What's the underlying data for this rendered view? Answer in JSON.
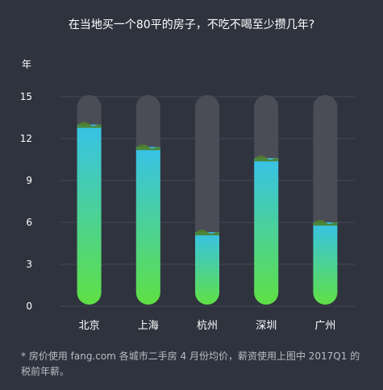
{
  "title": "在当地买一个80平的房子，不吃不喝至少攒几年?",
  "footnote": "* 房价使用 fang.com 各城市二手房 4 月份均价，薪资使用上图中 2017Q1 的税前年薪。",
  "colors": {
    "background": "#2f333e",
    "grid": "#464a55",
    "tube": "#4a4c56",
    "bar_top": "#37c2e8",
    "bar_bottom": "#5fe044",
    "cap": "#4f7f2a"
  },
  "chart_data": {
    "type": "bar",
    "ylabel": "年",
    "ylim": [
      0,
      15
    ],
    "yticks": [
      0,
      3,
      6,
      9,
      12,
      15
    ],
    "categories": [
      "北京",
      "上海",
      "杭州",
      "深圳",
      "广州"
    ],
    "values": [
      13.0,
      11.4,
      5.3,
      10.6,
      6.0
    ]
  }
}
